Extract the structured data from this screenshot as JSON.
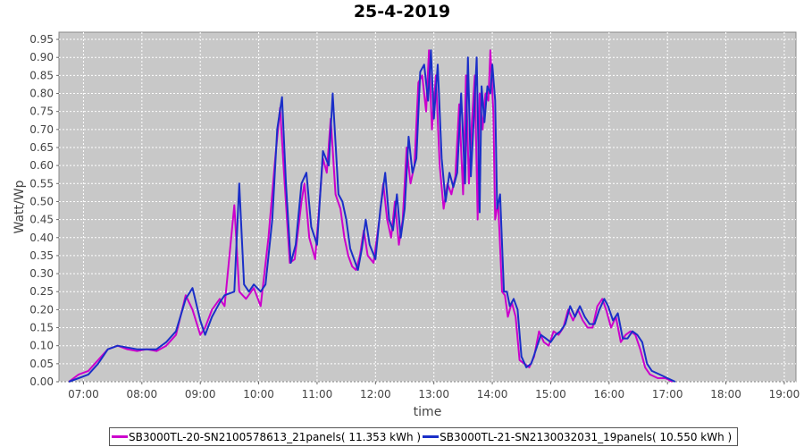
{
  "chart_data": {
    "type": "line",
    "title": "25-4-2019",
    "xlabel": "time",
    "ylabel": "Watt/Wp",
    "ylim": [
      0,
      0.97
    ],
    "xlim_hours": [
      6.58,
      19.2
    ],
    "yticks": [
      "0.00",
      "0.05",
      "0.10",
      "0.15",
      "0.20",
      "0.25",
      "0.30",
      "0.35",
      "0.40",
      "0.45",
      "0.50",
      "0.55",
      "0.60",
      "0.65",
      "0.70",
      "0.75",
      "0.80",
      "0.85",
      "0.90",
      "0.95"
    ],
    "xticks": [
      "07:00",
      "08:00",
      "09:00",
      "10:00",
      "11:00",
      "12:00",
      "13:00",
      "14:00",
      "15:00",
      "16:00",
      "17:00",
      "18:00",
      "19:00"
    ],
    "grid": true,
    "legend_position": "bottom",
    "series": [
      {
        "name": "SB3000TL-20-SN2100578613_21panels( 11.353 kWh )",
        "color": "#cc00cc",
        "points": [
          [
            "06:45",
            0.0
          ],
          [
            "06:55",
            0.02
          ],
          [
            "07:05",
            0.03
          ],
          [
            "07:15",
            0.06
          ],
          [
            "07:25",
            0.09
          ],
          [
            "07:35",
            0.1
          ],
          [
            "07:45",
            0.09
          ],
          [
            "07:55",
            0.085
          ],
          [
            "08:05",
            0.09
          ],
          [
            "08:15",
            0.085
          ],
          [
            "08:25",
            0.1
          ],
          [
            "08:35",
            0.13
          ],
          [
            "08:45",
            0.24
          ],
          [
            "08:52",
            0.2
          ],
          [
            "09:00",
            0.13
          ],
          [
            "09:05",
            0.15
          ],
          [
            "09:12",
            0.2
          ],
          [
            "09:20",
            0.23
          ],
          [
            "09:25",
            0.21
          ],
          [
            "09:35",
            0.49
          ],
          [
            "09:40",
            0.25
          ],
          [
            "09:47",
            0.23
          ],
          [
            "09:55",
            0.26
          ],
          [
            "10:02",
            0.21
          ],
          [
            "10:10",
            0.4
          ],
          [
            "10:17",
            0.62
          ],
          [
            "10:22",
            0.76
          ],
          [
            "10:26",
            0.58
          ],
          [
            "10:32",
            0.33
          ],
          [
            "10:37",
            0.34
          ],
          [
            "10:44",
            0.5
          ],
          [
            "10:47",
            0.55
          ],
          [
            "10:52",
            0.4
          ],
          [
            "10:58",
            0.34
          ],
          [
            "11:04",
            0.55
          ],
          [
            "11:06",
            0.62
          ],
          [
            "11:10",
            0.58
          ],
          [
            "11:14",
            0.73
          ],
          [
            "11:19",
            0.52
          ],
          [
            "11:24",
            0.48
          ],
          [
            "11:28",
            0.4
          ],
          [
            "11:32",
            0.35
          ],
          [
            "11:36",
            0.32
          ],
          [
            "11:40",
            0.31
          ],
          [
            "11:44",
            0.35
          ],
          [
            "11:48",
            0.42
          ],
          [
            "11:52",
            0.35
          ],
          [
            "11:58",
            0.33
          ],
          [
            "12:04",
            0.45
          ],
          [
            "12:08",
            0.55
          ],
          [
            "12:12",
            0.45
          ],
          [
            "12:16",
            0.4
          ],
          [
            "12:20",
            0.5
          ],
          [
            "12:24",
            0.38
          ],
          [
            "12:28",
            0.45
          ],
          [
            "12:32",
            0.65
          ],
          [
            "12:36",
            0.55
          ],
          [
            "12:40",
            0.6
          ],
          [
            "12:44",
            0.83
          ],
          [
            "12:48",
            0.85
          ],
          [
            "12:52",
            0.75
          ],
          [
            "12:55",
            0.92
          ],
          [
            "12:58",
            0.7
          ],
          [
            "13:02",
            0.85
          ],
          [
            "13:06",
            0.6
          ],
          [
            "13:10",
            0.48
          ],
          [
            "13:14",
            0.55
          ],
          [
            "13:18",
            0.52
          ],
          [
            "13:22",
            0.57
          ],
          [
            "13:26",
            0.77
          ],
          [
            "13:30",
            0.52
          ],
          [
            "13:33",
            0.85
          ],
          [
            "13:36",
            0.55
          ],
          [
            "13:39",
            0.72
          ],
          [
            "13:42",
            0.85
          ],
          [
            "13:45",
            0.45
          ],
          [
            "13:47",
            0.8
          ],
          [
            "13:50",
            0.7
          ],
          [
            "13:53",
            0.8
          ],
          [
            "13:56",
            0.78
          ],
          [
            "13:58",
            0.92
          ],
          [
            "14:01",
            0.75
          ],
          [
            "14:03",
            0.45
          ],
          [
            "14:06",
            0.5
          ],
          [
            "14:10",
            0.25
          ],
          [
            "14:13",
            0.24
          ],
          [
            "14:16",
            0.18
          ],
          [
            "14:20",
            0.22
          ],
          [
            "14:24",
            0.18
          ],
          [
            "14:28",
            0.06
          ],
          [
            "14:33",
            0.05
          ],
          [
            "14:38",
            0.04
          ],
          [
            "14:43",
            0.07
          ],
          [
            "14:48",
            0.14
          ],
          [
            "14:53",
            0.11
          ],
          [
            "14:58",
            0.1
          ],
          [
            "15:03",
            0.14
          ],
          [
            "15:08",
            0.13
          ],
          [
            "15:13",
            0.15
          ],
          [
            "15:18",
            0.2
          ],
          [
            "15:23",
            0.17
          ],
          [
            "15:28",
            0.2
          ],
          [
            "15:33",
            0.17
          ],
          [
            "15:38",
            0.15
          ],
          [
            "15:43",
            0.15
          ],
          [
            "15:48",
            0.21
          ],
          [
            "15:53",
            0.23
          ],
          [
            "15:57",
            0.2
          ],
          [
            "16:02",
            0.15
          ],
          [
            "16:07",
            0.18
          ],
          [
            "16:12",
            0.11
          ],
          [
            "16:17",
            0.13
          ],
          [
            "16:22",
            0.14
          ],
          [
            "16:27",
            0.13
          ],
          [
            "16:32",
            0.09
          ],
          [
            "16:37",
            0.04
          ],
          [
            "16:42",
            0.02
          ],
          [
            "16:50",
            0.01
          ],
          [
            "16:58",
            0.01
          ],
          [
            "17:05",
            0.0
          ]
        ]
      },
      {
        "name": "SB3000TL-21-SN2130032031_19panels( 10.550 kWh )",
        "color": "#1a2fc8",
        "points": [
          [
            "06:45",
            0.0
          ],
          [
            "06:55",
            0.01
          ],
          [
            "07:05",
            0.02
          ],
          [
            "07:15",
            0.05
          ],
          [
            "07:25",
            0.09
          ],
          [
            "07:35",
            0.1
          ],
          [
            "07:45",
            0.095
          ],
          [
            "07:55",
            0.09
          ],
          [
            "08:05",
            0.09
          ],
          [
            "08:15",
            0.09
          ],
          [
            "08:25",
            0.11
          ],
          [
            "08:35",
            0.14
          ],
          [
            "08:45",
            0.23
          ],
          [
            "08:52",
            0.26
          ],
          [
            "09:00",
            0.17
          ],
          [
            "09:05",
            0.13
          ],
          [
            "09:12",
            0.18
          ],
          [
            "09:20",
            0.22
          ],
          [
            "09:25",
            0.24
          ],
          [
            "09:35",
            0.25
          ],
          [
            "09:40",
            0.55
          ],
          [
            "09:45",
            0.27
          ],
          [
            "09:50",
            0.25
          ],
          [
            "09:55",
            0.27
          ],
          [
            "10:02",
            0.25
          ],
          [
            "10:07",
            0.27
          ],
          [
            "10:14",
            0.45
          ],
          [
            "10:19",
            0.7
          ],
          [
            "10:24",
            0.79
          ],
          [
            "10:28",
            0.55
          ],
          [
            "10:33",
            0.33
          ],
          [
            "10:38",
            0.38
          ],
          [
            "10:44",
            0.55
          ],
          [
            "10:49",
            0.58
          ],
          [
            "10:54",
            0.43
          ],
          [
            "11:00",
            0.38
          ],
          [
            "11:06",
            0.64
          ],
          [
            "11:12",
            0.6
          ],
          [
            "11:16",
            0.8
          ],
          [
            "11:22",
            0.52
          ],
          [
            "11:26",
            0.5
          ],
          [
            "11:30",
            0.45
          ],
          [
            "11:34",
            0.37
          ],
          [
            "11:38",
            0.34
          ],
          [
            "11:42",
            0.31
          ],
          [
            "11:46",
            0.37
          ],
          [
            "11:50",
            0.45
          ],
          [
            "11:54",
            0.38
          ],
          [
            "12:00",
            0.34
          ],
          [
            "12:05",
            0.48
          ],
          [
            "12:10",
            0.58
          ],
          [
            "12:14",
            0.45
          ],
          [
            "12:18",
            0.42
          ],
          [
            "12:22",
            0.52
          ],
          [
            "12:26",
            0.4
          ],
          [
            "12:30",
            0.48
          ],
          [
            "12:34",
            0.68
          ],
          [
            "12:38",
            0.58
          ],
          [
            "12:42",
            0.62
          ],
          [
            "12:46",
            0.86
          ],
          [
            "12:50",
            0.88
          ],
          [
            "12:54",
            0.78
          ],
          [
            "12:57",
            0.92
          ],
          [
            "13:00",
            0.73
          ],
          [
            "13:04",
            0.88
          ],
          [
            "13:08",
            0.62
          ],
          [
            "13:12",
            0.5
          ],
          [
            "13:16",
            0.58
          ],
          [
            "13:20",
            0.54
          ],
          [
            "13:24",
            0.58
          ],
          [
            "13:28",
            0.8
          ],
          [
            "13:32",
            0.55
          ],
          [
            "13:35",
            0.9
          ],
          [
            "13:38",
            0.57
          ],
          [
            "13:41",
            0.73
          ],
          [
            "13:44",
            0.9
          ],
          [
            "13:47",
            0.47
          ],
          [
            "13:49",
            0.82
          ],
          [
            "13:52",
            0.72
          ],
          [
            "13:55",
            0.82
          ],
          [
            "13:58",
            0.8
          ],
          [
            "14:00",
            0.88
          ],
          [
            "14:03",
            0.78
          ],
          [
            "14:05",
            0.48
          ],
          [
            "14:08",
            0.52
          ],
          [
            "14:12",
            0.25
          ],
          [
            "14:15",
            0.25
          ],
          [
            "14:18",
            0.21
          ],
          [
            "14:22",
            0.23
          ],
          [
            "14:26",
            0.2
          ],
          [
            "14:30",
            0.07
          ],
          [
            "14:35",
            0.04
          ],
          [
            "14:40",
            0.05
          ],
          [
            "14:45",
            0.09
          ],
          [
            "14:50",
            0.13
          ],
          [
            "14:55",
            0.12
          ],
          [
            "15:00",
            0.11
          ],
          [
            "15:05",
            0.13
          ],
          [
            "15:10",
            0.14
          ],
          [
            "15:15",
            0.16
          ],
          [
            "15:20",
            0.21
          ],
          [
            "15:25",
            0.18
          ],
          [
            "15:30",
            0.21
          ],
          [
            "15:35",
            0.18
          ],
          [
            "15:40",
            0.16
          ],
          [
            "15:45",
            0.16
          ],
          [
            "15:50",
            0.2
          ],
          [
            "15:55",
            0.23
          ],
          [
            "15:59",
            0.21
          ],
          [
            "16:04",
            0.17
          ],
          [
            "16:09",
            0.19
          ],
          [
            "16:14",
            0.12
          ],
          [
            "16:19",
            0.12
          ],
          [
            "16:24",
            0.14
          ],
          [
            "16:29",
            0.13
          ],
          [
            "16:34",
            0.11
          ],
          [
            "16:39",
            0.05
          ],
          [
            "16:44",
            0.03
          ],
          [
            "16:52",
            0.02
          ],
          [
            "17:00",
            0.01
          ],
          [
            "17:08",
            0.0
          ]
        ]
      }
    ]
  }
}
